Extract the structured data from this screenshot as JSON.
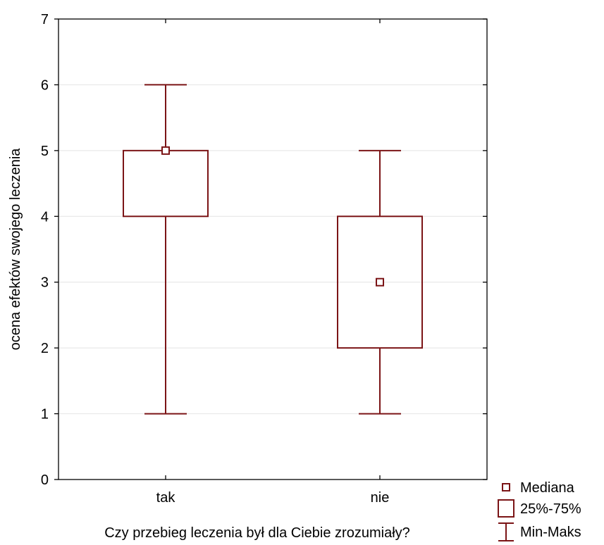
{
  "chart_data": {
    "type": "boxplot",
    "title": "",
    "xlabel": "Czy przebieg leczenia był dla Ciebie zrozumiały?",
    "ylabel": "ocena efektów swojego leczenia",
    "ylim": [
      0,
      7
    ],
    "yticks": [
      0,
      1,
      2,
      3,
      4,
      5,
      6,
      7
    ],
    "categories": [
      "tak",
      "nie"
    ],
    "boxes": [
      {
        "category": "tak",
        "min": 1,
        "q1": 4,
        "median": 5,
        "q3": 5,
        "max": 6
      },
      {
        "category": "nie",
        "min": 1,
        "q1": 2,
        "median": 3,
        "q3": 4,
        "max": 5
      }
    ],
    "legend": {
      "position": "bottom-right",
      "items": [
        {
          "label": "Mediana",
          "symbol": "small-square"
        },
        {
          "label": "25%-75%",
          "symbol": "box"
        },
        {
          "label": "Min-Maks",
          "symbol": "whisker"
        }
      ]
    },
    "grid": "horizontal",
    "colors": {
      "series": "#7b1416",
      "grid": "#e4e4e4",
      "axis": "#000000"
    }
  }
}
